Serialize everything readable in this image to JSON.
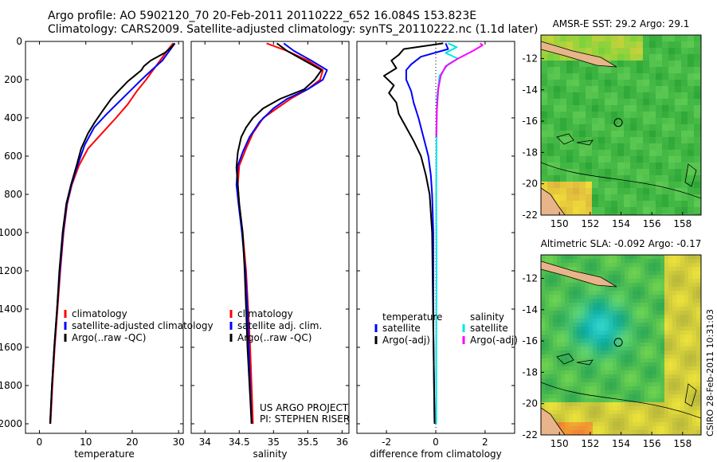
{
  "header": {
    "title_line1": "Argo profile: AO 5902120_70 20-Feb-2011 20110222_652 16.084S 153.823E",
    "title_line2": "Climatology: CARS2009. Satellite-adjusted climatology: synTS_20110222.nc (1.1d later)"
  },
  "colors": {
    "climatology": "#ff0000",
    "satellite": "#0000ff",
    "argo": "#000000",
    "sal_satellite": "#00e6e6",
    "sal_argo": "#ff00ff",
    "zero_line": "#000000"
  },
  "footer": {
    "project_line1": "US ARGO PROJECT",
    "project_line2": "PI: STEPHEN RISER",
    "stamp": "CSIRO 28-Feb-2011 10:31:03"
  },
  "chart_data": [
    {
      "id": "temperature",
      "type": "line",
      "xlabel": "temperature",
      "ylabel": "",
      "xlim": [
        -3,
        31
      ],
      "ylim": [
        2050,
        0
      ],
      "xticks": [
        0,
        10,
        20,
        30
      ],
      "yticks": [
        0,
        200,
        400,
        600,
        800,
        1000,
        1200,
        1400,
        1600,
        1800,
        2000
      ],
      "legend": {
        "position": "bottom-right",
        "entries": [
          {
            "label": "climatology",
            "color": "#ff0000"
          },
          {
            "label": "satellite-adjusted climatology",
            "color": "#0000ff"
          },
          {
            "label": "Argo(..raw -QC)",
            "color": "#000000"
          }
        ]
      },
      "series": [
        {
          "name": "climatology",
          "color": "#ff0000",
          "points": [
            [
              28.8,
              10
            ],
            [
              27.5,
              50
            ],
            [
              26,
              100
            ],
            [
              24.5,
              150
            ],
            [
              23,
              200
            ],
            [
              21,
              260
            ],
            [
              19,
              330
            ],
            [
              16.5,
              400
            ],
            [
              13.5,
              480
            ],
            [
              10.5,
              560
            ],
            [
              8.5,
              650
            ],
            [
              7,
              750
            ],
            [
              6,
              850
            ],
            [
              5.2,
              1000
            ],
            [
              4.5,
              1200
            ],
            [
              3.9,
              1400
            ],
            [
              3.3,
              1600
            ],
            [
              2.8,
              1800
            ],
            [
              2.4,
              2000
            ]
          ]
        },
        {
          "name": "satellite-adjusted climatology",
          "color": "#0000ff",
          "points": [
            [
              29.2,
              10
            ],
            [
              28,
              50
            ],
            [
              26.5,
              100
            ],
            [
              24.2,
              150
            ],
            [
              22,
              200
            ],
            [
              19.5,
              260
            ],
            [
              17,
              320
            ],
            [
              14.5,
              380
            ],
            [
              11.8,
              450
            ],
            [
              9.8,
              540
            ],
            [
              8.2,
              650
            ],
            [
              6.9,
              750
            ],
            [
              5.9,
              850
            ],
            [
              5.1,
              1000
            ],
            [
              4.4,
              1200
            ],
            [
              3.8,
              1400
            ],
            [
              3.2,
              1600
            ],
            [
              2.7,
              1800
            ],
            [
              2.3,
              2000
            ]
          ]
        },
        {
          "name": "Argo(..raw -QC)",
          "color": "#000000",
          "points": [
            [
              29.1,
              10
            ],
            [
              28.5,
              30
            ],
            [
              27,
              60
            ],
            [
              24,
              100
            ],
            [
              22.5,
              130
            ],
            [
              22,
              150
            ],
            [
              20.5,
              180
            ],
            [
              19,
              210
            ],
            [
              17,
              260
            ],
            [
              15.5,
              300
            ],
            [
              14,
              350
            ],
            [
              12,
              420
            ],
            [
              10.5,
              480
            ],
            [
              9,
              560
            ],
            [
              8,
              650
            ],
            [
              6.8,
              750
            ],
            [
              5.8,
              850
            ],
            [
              5,
              1000
            ],
            [
              4.3,
              1200
            ],
            [
              3.8,
              1400
            ],
            [
              3.2,
              1600
            ],
            [
              2.7,
              1800
            ],
            [
              2.3,
              2000
            ]
          ]
        }
      ]
    },
    {
      "id": "salinity",
      "type": "line",
      "xlabel": "salinity",
      "ylabel": "",
      "xlim": [
        33.8,
        36.1
      ],
      "ylim": [
        2050,
        0
      ],
      "xticks": [
        34,
        34.5,
        35,
        35.5,
        36
      ],
      "xticklabels": [
        "34",
        "34.5",
        "35",
        "35.5",
        "36"
      ],
      "legend": {
        "position": "bottom-right",
        "entries": [
          {
            "label": "climatology",
            "color": "#ff0000"
          },
          {
            "label": "satellite adj. clim.",
            "color": "#0000ff"
          },
          {
            "label": "Argo(..raw -QC)",
            "color": "#000000"
          }
        ]
      },
      "series": [
        {
          "name": "climatology",
          "color": "#ff0000",
          "points": [
            [
              34.9,
              10
            ],
            [
              35.2,
              50
            ],
            [
              35.5,
              100
            ],
            [
              35.72,
              150
            ],
            [
              35.68,
              200
            ],
            [
              35.5,
              250
            ],
            [
              35.25,
              300
            ],
            [
              35.05,
              350
            ],
            [
              34.85,
              400
            ],
            [
              34.7,
              480
            ],
            [
              34.6,
              560
            ],
            [
              34.5,
              650
            ],
            [
              34.48,
              750
            ],
            [
              34.5,
              850
            ],
            [
              34.55,
              1000
            ],
            [
              34.6,
              1200
            ],
            [
              34.63,
              1400
            ],
            [
              34.66,
              1600
            ],
            [
              34.68,
              1800
            ],
            [
              34.7,
              2000
            ]
          ]
        },
        {
          "name": "satellite adj. clim.",
          "color": "#0000ff",
          "points": [
            [
              35.15,
              10
            ],
            [
              35.3,
              50
            ],
            [
              35.55,
              100
            ],
            [
              35.78,
              150
            ],
            [
              35.72,
              200
            ],
            [
              35.5,
              250
            ],
            [
              35.2,
              300
            ],
            [
              35.0,
              350
            ],
            [
              34.8,
              420
            ],
            [
              34.65,
              500
            ],
            [
              34.55,
              580
            ],
            [
              34.48,
              650
            ],
            [
              34.46,
              750
            ],
            [
              34.49,
              850
            ],
            [
              34.54,
              1000
            ],
            [
              34.59,
              1200
            ],
            [
              34.62,
              1400
            ],
            [
              34.64,
              1600
            ],
            [
              34.66,
              1800
            ],
            [
              34.68,
              2000
            ]
          ]
        },
        {
          "name": "Argo(..raw -QC)",
          "color": "#000000",
          "points": [
            [
              35.05,
              10
            ],
            [
              35.2,
              50
            ],
            [
              35.45,
              100
            ],
            [
              35.7,
              150
            ],
            [
              35.6,
              200
            ],
            [
              35.45,
              250
            ],
            [
              35.1,
              300
            ],
            [
              34.85,
              350
            ],
            [
              34.7,
              400
            ],
            [
              34.6,
              450
            ],
            [
              34.53,
              500
            ],
            [
              34.48,
              580
            ],
            [
              34.46,
              660
            ],
            [
              34.48,
              750
            ],
            [
              34.5,
              850
            ],
            [
              34.55,
              1000
            ],
            [
              34.58,
              1200
            ],
            [
              34.6,
              1400
            ],
            [
              34.62,
              1600
            ],
            [
              34.65,
              1800
            ],
            [
              34.68,
              2000
            ]
          ]
        }
      ]
    },
    {
      "id": "difference",
      "type": "line",
      "xlabel": "difference from climatology",
      "ylabel": "",
      "xlim": [
        -3.2,
        3.2
      ],
      "ylim": [
        2050,
        0
      ],
      "xticks": [
        -2,
        0,
        2
      ],
      "legend": {
        "position": "bottom",
        "columns": [
          {
            "header": "temperature",
            "entries": [
              {
                "label": "satellite",
                "color": "#0000ff"
              },
              {
                "label": "Argo(-adj)",
                "color": "#000000"
              }
            ]
          },
          {
            "header": "salinity",
            "entries": [
              {
                "label": "satellite",
                "color": "#00e6e6"
              },
              {
                "label": "Argo(-adj)",
                "color": "#ff00ff"
              }
            ]
          }
        ]
      },
      "series": [
        {
          "name": "temperature satellite",
          "color": "#0000ff",
          "points": [
            [
              0.4,
              10
            ],
            [
              0.5,
              40
            ],
            [
              -0.6,
              80
            ],
            [
              -1.0,
              120
            ],
            [
              -1.2,
              150
            ],
            [
              -1.2,
              200
            ],
            [
              -1.0,
              260
            ],
            [
              -0.9,
              320
            ],
            [
              -0.7,
              400
            ],
            [
              -0.5,
              500
            ],
            [
              -0.3,
              600
            ],
            [
              -0.2,
              700
            ],
            [
              -0.15,
              800
            ],
            [
              -0.1,
              1000
            ],
            [
              -0.1,
              1500
            ],
            [
              -0.05,
              2000
            ]
          ]
        },
        {
          "name": "temperature Argo(-adj)",
          "color": "#000000",
          "points": [
            [
              0.3,
              10
            ],
            [
              -1.3,
              40
            ],
            [
              -1.5,
              70
            ],
            [
              -1.8,
              100
            ],
            [
              -1.6,
              140
            ],
            [
              -2.1,
              180
            ],
            [
              -1.7,
              230
            ],
            [
              -1.9,
              270
            ],
            [
              -1.6,
              320
            ],
            [
              -1.5,
              380
            ],
            [
              -1.2,
              450
            ],
            [
              -0.9,
              520
            ],
            [
              -0.6,
              600
            ],
            [
              -0.4,
              700
            ],
            [
              -0.25,
              800
            ],
            [
              -0.15,
              1000
            ],
            [
              -0.1,
              1500
            ],
            [
              -0.05,
              2000
            ]
          ]
        },
        {
          "name": "salinity satellite",
          "color": "#00e6e6",
          "points": [
            [
              0.5,
              10
            ],
            [
              0.85,
              30
            ],
            [
              0.4,
              60
            ],
            [
              0.9,
              90
            ],
            [
              0.5,
              120
            ],
            [
              0.15,
              180
            ],
            [
              0.05,
              300
            ],
            [
              0.03,
              500
            ],
            [
              0.02,
              800
            ],
            [
              0.03,
              1200
            ],
            [
              0.02,
              1600
            ],
            [
              0.02,
              2000
            ]
          ]
        },
        {
          "name": "salinity Argo(-adj)",
          "color": "#ff00ff",
          "points": [
            [
              1.8,
              10
            ],
            [
              1.9,
              20
            ],
            [
              1.5,
              50
            ],
            [
              0.9,
              90
            ],
            [
              0.4,
              130
            ],
            [
              0.2,
              180
            ],
            [
              0.1,
              250
            ],
            [
              0.05,
              350
            ],
            [
              0.02,
              500
            ]
          ]
        }
      ]
    },
    {
      "id": "amsre-sst",
      "type": "heatmap",
      "title": "AMSR-E SST: 29.2  Argo: 29.1",
      "xticks": [
        150,
        152,
        154,
        156,
        158
      ],
      "yticks": [
        -12,
        -14,
        -16,
        -18,
        -20,
        -22
      ],
      "xlim": [
        148.8,
        159.2
      ],
      "ylim": [
        -22,
        -10.5
      ],
      "marker": [
        153.823,
        -16.084
      ]
    },
    {
      "id": "altimetric-sla",
      "type": "heatmap",
      "title": "Altimetric SLA: -0.092  Argo: -0.17",
      "xticks": [
        150,
        152,
        154,
        156,
        158
      ],
      "yticks": [
        -12,
        -14,
        -16,
        -18,
        -20,
        -22
      ],
      "xlim": [
        148.8,
        159.2
      ],
      "ylim": [
        -22,
        -10.5
      ],
      "marker": [
        153.823,
        -16.084
      ]
    }
  ]
}
